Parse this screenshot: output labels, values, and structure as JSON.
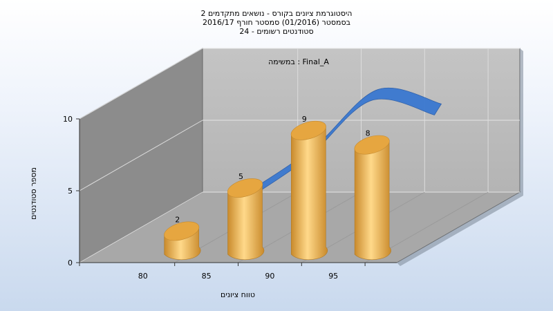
{
  "chart_data": {
    "type": "bar",
    "title_lines": [
      "היסטוגרמת ציונים בקורס - נושאים מתקדמים 2",
      "בסמסטר  (01/2016)  סמסטר חורף 2016/17",
      "סטודנטים רשומים - 24"
    ],
    "xlabel": "טווח ציונים",
    "ylabel": "מספר סטודנטים",
    "series_annotation": "במשימה : Final_A",
    "x_ticks": [
      "80",
      "85",
      "90",
      "95"
    ],
    "y_ticks": [
      "0",
      "5",
      "10"
    ],
    "ylim": [
      0,
      10
    ],
    "xlim": [
      75,
      100
    ],
    "categories": [
      "80",
      "85",
      "90",
      "95"
    ],
    "values": [
      2,
      5,
      9,
      8
    ],
    "data_labels": [
      "2",
      "5",
      "9",
      "8"
    ],
    "trend_line": [
      2,
      5,
      9,
      8
    ],
    "colors": {
      "bar_light": "#ffd98a",
      "bar_dark": "#c98a2c",
      "bar_top": "#e6a640",
      "trend": "#3a78d0",
      "back_wall": "#b9b9b9",
      "side_wall": "#8a8a8a",
      "floor": "#a9a9a9"
    },
    "grid": true
  }
}
